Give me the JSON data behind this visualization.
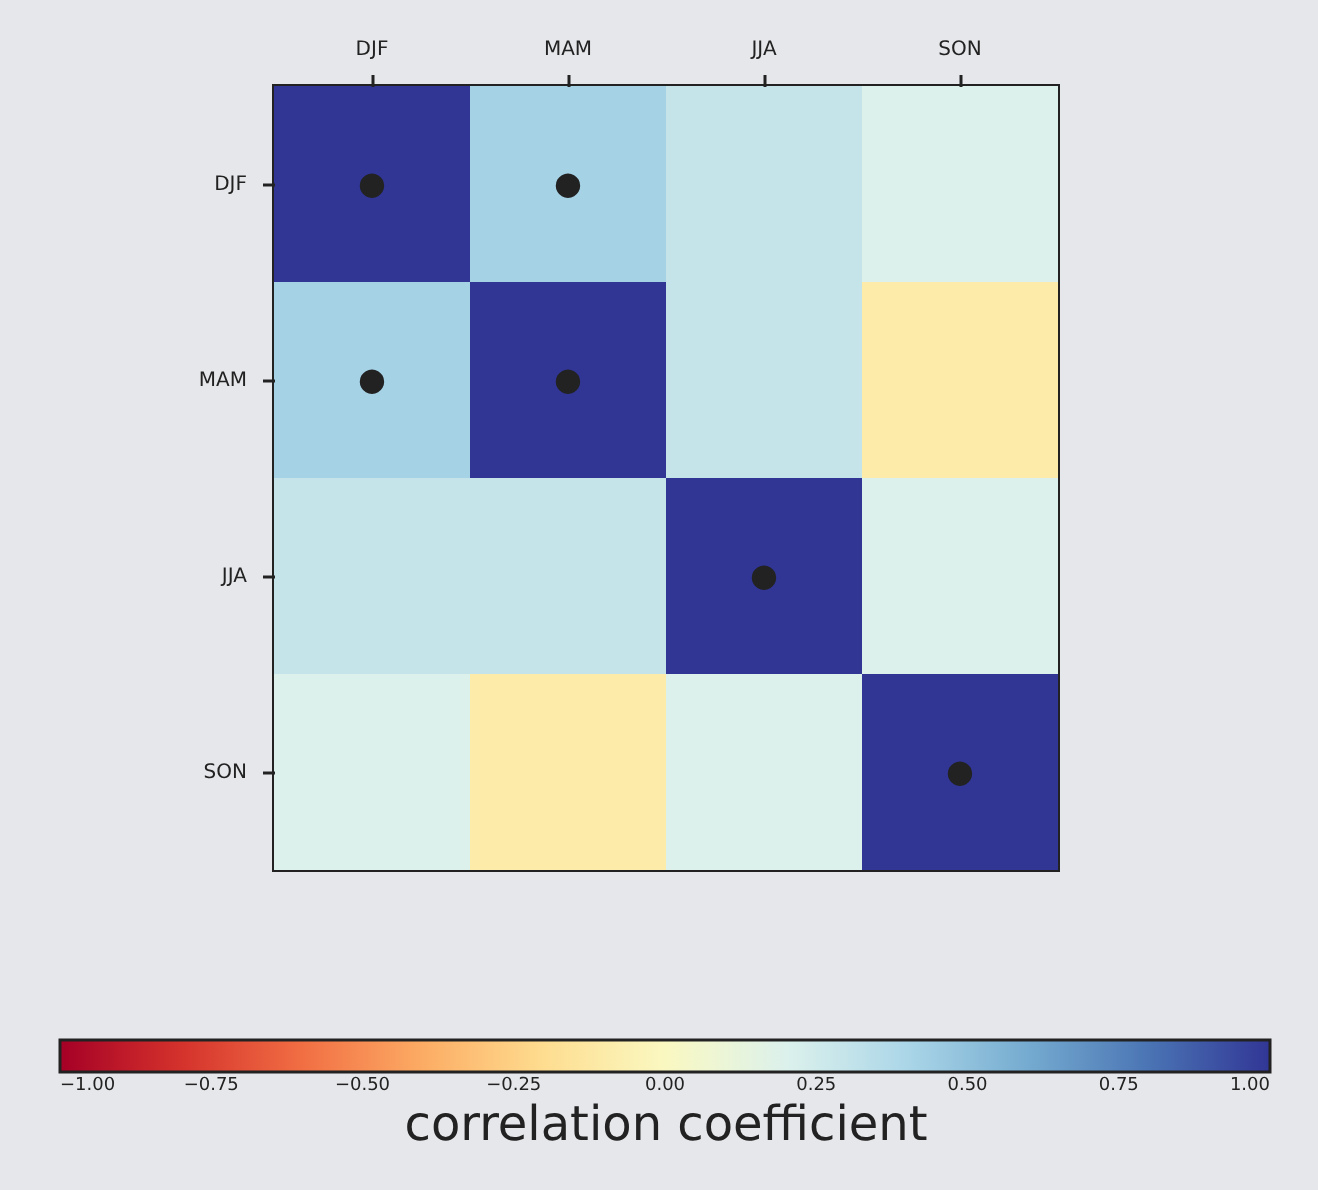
{
  "chart_data": {
    "type": "heatmap",
    "categories": [
      "DJF",
      "MAM",
      "JJA",
      "SON"
    ],
    "y_categories": [
      "DJF",
      "MAM",
      "JJA",
      "SON"
    ],
    "cells": [
      [
        1,
        0.42,
        0.3,
        0.2
      ],
      [
        0.42,
        1,
        0.3,
        -0.1
      ],
      [
        0.3,
        0.3,
        1,
        0.2
      ],
      [
        0.2,
        -0.1,
        0.2,
        1
      ]
    ],
    "cell_labels": [
      [
        "●",
        "●",
        null,
        null
      ],
      [
        "●",
        "●",
        null,
        null
      ],
      [
        null,
        null,
        "●",
        null
      ],
      [
        null,
        null,
        null,
        "●"
      ]
    ],
    "clim": [
      -1,
      1
    ],
    "cticks": [
      {
        "value": -1,
        "label": "−1.00"
      },
      {
        "value": -0.75,
        "label": "−0.75"
      },
      {
        "value": -0.5,
        "label": "−0.50"
      },
      {
        "value": -0.25,
        "label": "−0.25"
      },
      {
        "value": 0,
        "label": "0.00"
      },
      {
        "value": 0.25,
        "label": "0.25"
      },
      {
        "value": 0.5,
        "label": "0.50"
      },
      {
        "value": 0.75,
        "label": "0.75"
      },
      {
        "value": 1,
        "label": "1.00"
      }
    ],
    "clabel": "correlation coefficient",
    "grid": false
  }
}
